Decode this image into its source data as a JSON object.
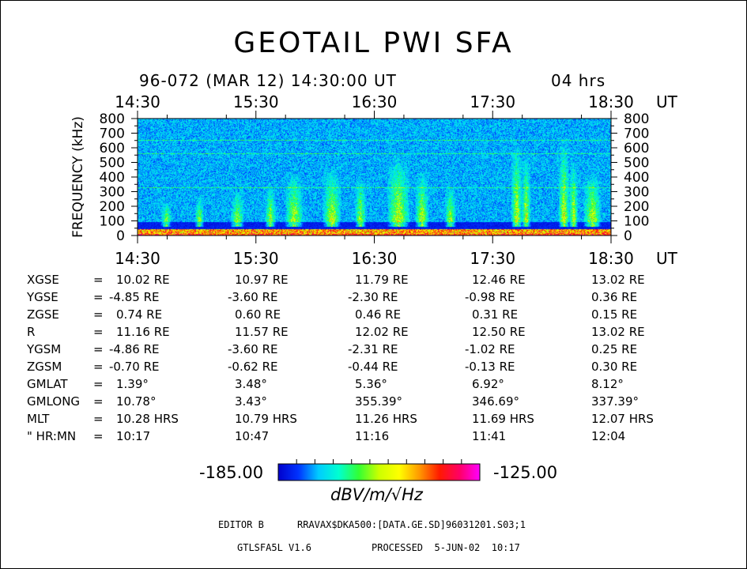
{
  "header": {
    "title": "GEOTAIL PWI SFA",
    "date_line": "96-072 (MAR 12) 14:30:00 UT",
    "duration": "04 hrs"
  },
  "chart_data": {
    "type": "heatmap",
    "title": "GEOTAIL PWI SFA",
    "ylabel": "FREQUENCY (kHz)",
    "xlabel": "UT",
    "x_ticks": [
      "14:30",
      "15:30",
      "16:30",
      "17:30",
      "18:30"
    ],
    "y_ticks": [
      0,
      100,
      200,
      300,
      400,
      500,
      600,
      700,
      800
    ],
    "ylim": [
      0,
      800
    ],
    "xlim_hours": [
      14.5,
      18.5
    ],
    "grid": false,
    "colorbar": {
      "min": -185.0,
      "max": -125.0,
      "min_label": "-185.00",
      "max_label": "-125.00",
      "unit": "dBV/m/√Hz",
      "colors": [
        "#0000cc",
        "#0033ff",
        "#00ccff",
        "#00ffd0",
        "#33ff33",
        "#ccff00",
        "#ffff00",
        "#ff9900",
        "#ff1a00",
        "#ff0066",
        "#ff00ff"
      ]
    },
    "features": {
      "background_level": "-175 dBV/m/√Hz (dark blue)",
      "emission_bursts_UT": [
        "15:20",
        "15:40",
        "16:00",
        "16:20",
        "16:50",
        "17:05",
        "17:45",
        "18:05"
      ],
      "low_frequency_band": "0-20 kHz intense (yellow/red)"
    }
  },
  "orbit": {
    "rows": [
      {
        "label": "XGSE",
        "eq": "=",
        "values": [
          "10.02 RE",
          "10.97 RE",
          "11.79 RE",
          "12.46 RE",
          "13.02 RE"
        ]
      },
      {
        "label": "YGSE",
        "eq": "=",
        "values": [
          "-4.85 RE",
          "-3.60 RE",
          "-2.30 RE",
          "-0.98 RE",
          "0.36 RE"
        ]
      },
      {
        "label": "ZGSE",
        "eq": "=",
        "values": [
          "0.74 RE",
          "0.60 RE",
          "0.46 RE",
          "0.31 RE",
          "0.15 RE"
        ]
      },
      {
        "label": "R",
        "eq": "=",
        "values": [
          "11.16 RE",
          "11.57 RE",
          "12.02 RE",
          "12.50 RE",
          "13.02 RE"
        ]
      },
      {
        "label": "YGSM",
        "eq": "=",
        "values": [
          "-4.86 RE",
          "-3.60 RE",
          "-2.31 RE",
          "-1.02 RE",
          "0.25 RE"
        ]
      },
      {
        "label": "ZGSM",
        "eq": "=",
        "values": [
          "-0.70 RE",
          "-0.62 RE",
          "-0.44 RE",
          "-0.13 RE",
          "0.30 RE"
        ]
      },
      {
        "label": "GMLAT",
        "eq": "=",
        "values": [
          "1.39°",
          "3.48°",
          "5.36°",
          "6.92°",
          "8.12°"
        ]
      },
      {
        "label": "GMLONG",
        "eq": "=",
        "values": [
          "10.78°",
          "3.43°",
          "355.39°",
          "346.69°",
          "337.39°"
        ]
      },
      {
        "label": "MLT",
        "eq": "=",
        "values": [
          "10.28 HRS",
          "10.79 HRS",
          "11.26 HRS",
          "11.69 HRS",
          "12.07 HRS"
        ]
      },
      {
        "label": "\" HR:MN",
        "eq": "=",
        "values": [
          "10:17",
          "10:47",
          "11:16",
          "11:41",
          "12:04"
        ]
      }
    ]
  },
  "footer": {
    "editor_label": "EDITOR B",
    "file_path": "RRAVAX$DKA500:[DATA.GE.SD]96031201.S03;1",
    "program": "GTLSFA5L V1.6",
    "processed": "PROCESSED  5-JUN-02  10:17"
  }
}
